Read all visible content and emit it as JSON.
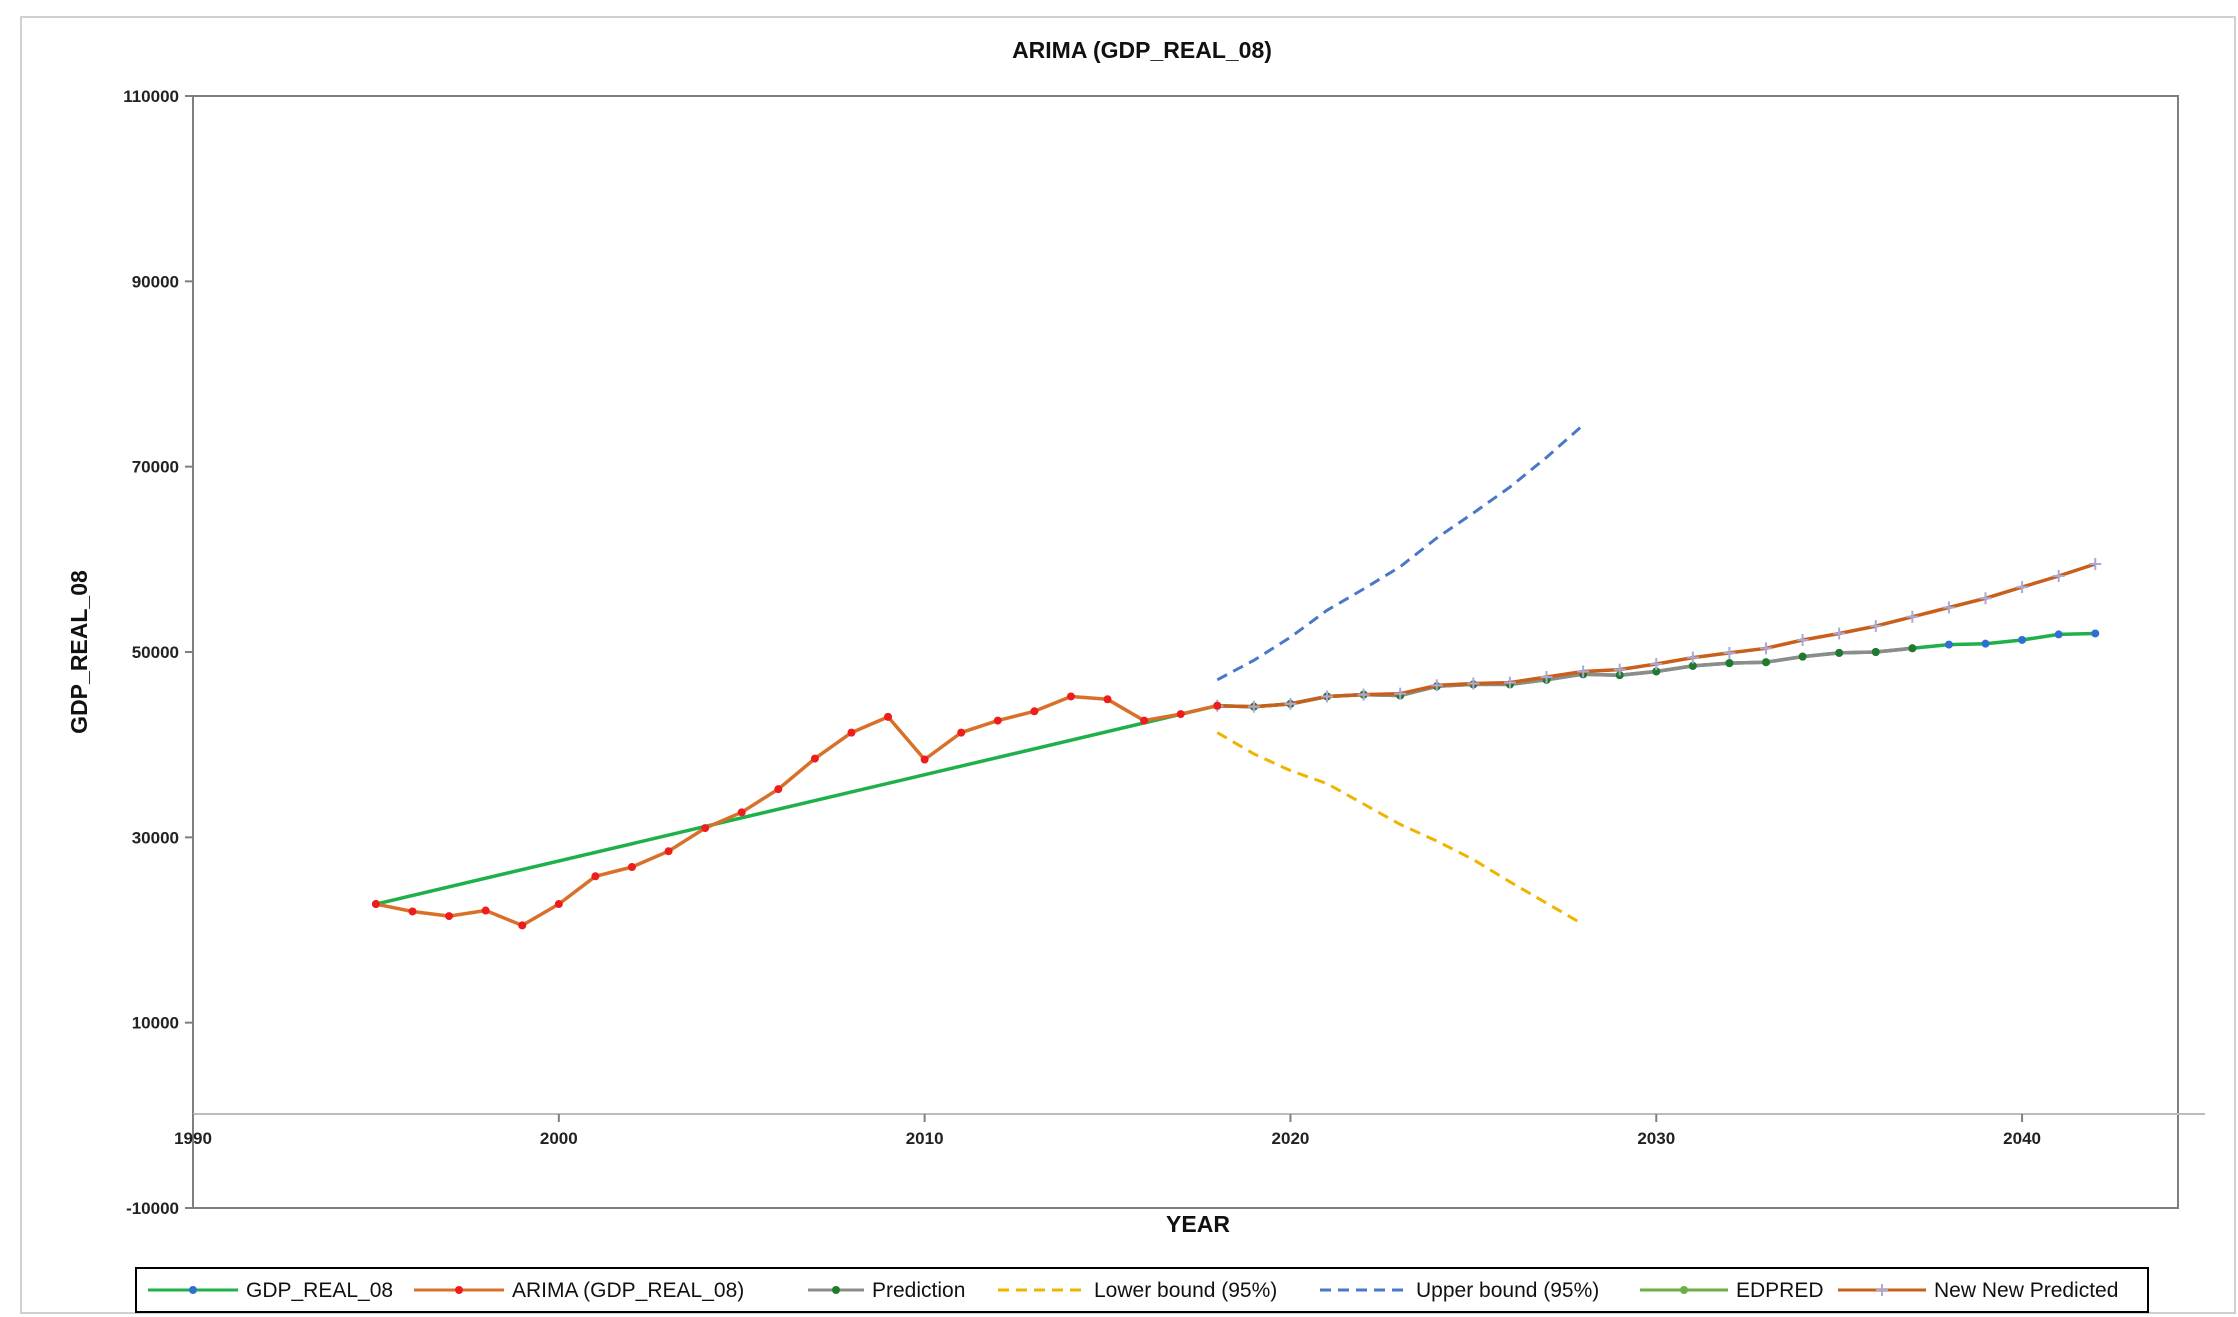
{
  "chart_data": {
    "type": "line",
    "title": "ARIMA (GDP_REAL_08)",
    "xlabel": "YEAR",
    "ylabel": "GDP_REAL_08",
    "xlim": [
      1990,
      2045
    ],
    "ylim": [
      -10000,
      110000
    ],
    "x_ticks": [
      1990,
      2000,
      2010,
      2020,
      2030,
      2040
    ],
    "y_ticks": [
      -10000,
      10000,
      30000,
      50000,
      70000,
      90000,
      110000
    ],
    "x_tick_labels": [
      "1990",
      "2000",
      "2010",
      "2020",
      "2030",
      "2040"
    ],
    "y_tick_labels": [
      "-10000",
      "10000",
      "30000",
      "50000",
      "70000",
      "90000",
      "110000"
    ],
    "grid": false,
    "legend_position": "bottom",
    "series": [
      {
        "name": "GDP_REAL_08",
        "color": "#1fb04a",
        "style": "solid",
        "marker": "dot-blue",
        "x": [
          1995,
          2018,
          2019,
          2020,
          2021,
          2022,
          2023,
          2024,
          2025,
          2026,
          2027,
          2028,
          2029,
          2030,
          2031,
          2032,
          2033,
          2034,
          2035,
          2036,
          2037,
          2038,
          2039,
          2040,
          2041,
          2042
        ],
        "y": [
          22800,
          44200,
          44100,
          44400,
          45200,
          45400,
          45300,
          46300,
          46500,
          46500,
          47000,
          47600,
          47500,
          47900,
          48500,
          48800,
          48900,
          49500,
          49900,
          50000,
          50400,
          50800,
          50900,
          51300,
          51900,
          52000
        ]
      },
      {
        "name": "ARIMA (GDP_REAL_08)",
        "color": "#d9702a",
        "style": "solid",
        "marker": "dot-red",
        "x": [
          1995,
          1996,
          1997,
          1998,
          1999,
          2000,
          2001,
          2002,
          2003,
          2004,
          2005,
          2006,
          2007,
          2008,
          2009,
          2010,
          2011,
          2012,
          2013,
          2014,
          2015,
          2016,
          2017,
          2018
        ],
        "y": [
          22800,
          22000,
          21500,
          22100,
          20500,
          22800,
          25800,
          26800,
          28500,
          31000,
          32700,
          35200,
          38500,
          41300,
          43000,
          38400,
          41300,
          42600,
          43600,
          45200,
          44900,
          42600,
          43300,
          44200
        ]
      },
      {
        "name": "Prediction",
        "color": "#8c8c8c",
        "style": "solid",
        "marker": "dot-green",
        "x": [
          2018,
          2019,
          2020,
          2021,
          2022,
          2023,
          2024,
          2025,
          2026,
          2027,
          2028,
          2029,
          2030,
          2031,
          2032,
          2033,
          2034,
          2035,
          2036,
          2037
        ],
        "y": [
          44200,
          44100,
          44400,
          45200,
          45400,
          45300,
          46300,
          46500,
          46500,
          47000,
          47600,
          47500,
          47900,
          48500,
          48800,
          48900,
          49500,
          49900,
          50000,
          50400
        ]
      },
      {
        "name": "Lower bound (95%)",
        "color": "#f0b400",
        "style": "dashed",
        "marker": "none",
        "x": [
          2018,
          2019,
          2020,
          2021,
          2022,
          2023,
          2024,
          2025,
          2026,
          2027,
          2028
        ],
        "y": [
          41300,
          39000,
          37200,
          35800,
          33600,
          31400,
          29600,
          27600,
          25200,
          22900,
          20600
        ]
      },
      {
        "name": "Upper bound (95%)",
        "color": "#4a78c8",
        "style": "dashed",
        "marker": "none",
        "x": [
          2018,
          2019,
          2020,
          2021,
          2022,
          2023,
          2024,
          2025,
          2026,
          2027,
          2028
        ],
        "y": [
          47000,
          49100,
          51600,
          54500,
          56800,
          59200,
          62300,
          65000,
          67800,
          71000,
          74500
        ]
      },
      {
        "name": "EDPRED",
        "color": "#6aae45",
        "style": "solid",
        "marker": "dot-green-light",
        "x": [],
        "y": []
      },
      {
        "name": "New New Predicted",
        "color": "#c8601c",
        "style": "solid",
        "marker": "plus-lavender",
        "x": [
          2018,
          2019,
          2020,
          2021,
          2022,
          2023,
          2024,
          2025,
          2026,
          2027,
          2028,
          2029,
          2030,
          2031,
          2032,
          2033,
          2034,
          2035,
          2036,
          2037,
          2038,
          2039,
          2040,
          2041,
          2042
        ],
        "y": [
          44200,
          44100,
          44400,
          45200,
          45400,
          45500,
          46400,
          46600,
          46700,
          47300,
          47900,
          48100,
          48700,
          49400,
          49900,
          50400,
          51300,
          52000,
          52800,
          53800,
          54800,
          55800,
          57000,
          58200,
          59500
        ]
      }
    ]
  }
}
